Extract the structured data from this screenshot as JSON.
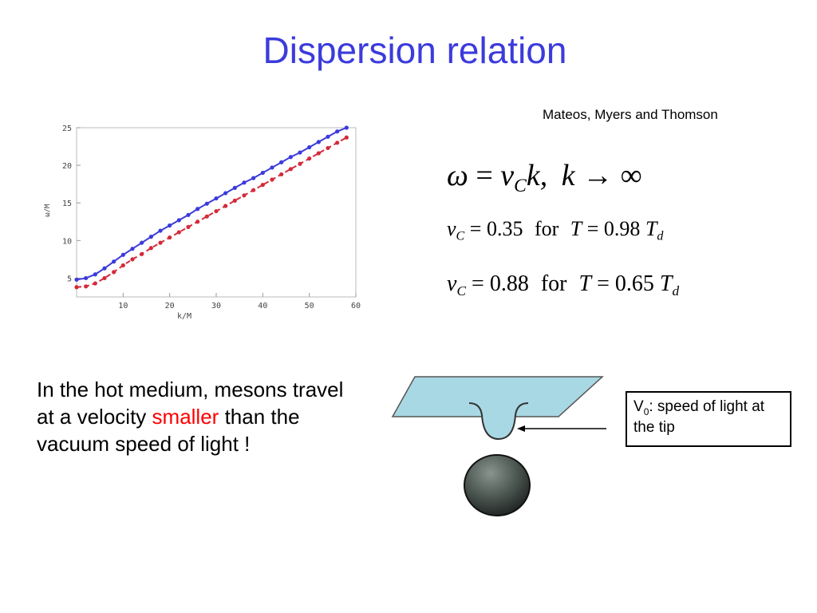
{
  "title": "Dispersion relation",
  "citation": "Mateos, Myers and Thomson",
  "equations": {
    "eq1": {
      "lhs": "ω",
      "rhs_v": "v",
      "rhs_sub": "C",
      "rhs_k": "k,",
      "limit_var": "k",
      "limit": "→ ∞"
    },
    "eq2": {
      "v": "v",
      "sub": "C",
      "value": "= 0.35",
      "word": "for",
      "T": "T",
      "eq_val": "= 0.98",
      "Td": "T",
      "Td_sub": "d"
    },
    "eq3": {
      "v": "v",
      "sub": "C",
      "value": "= 0.88",
      "word": "for",
      "T": "T",
      "eq_val": "= 0.65",
      "Td": "T",
      "Td_sub": "d"
    }
  },
  "body": {
    "part1": "In the hot medium, mesons travel at a velocity",
    "highlight": "smaller",
    "part2": "than the vacuum speed  of light  !"
  },
  "callout": {
    "prefix": "V",
    "sub": "0",
    "text": ": speed of light at the tip"
  },
  "colors": {
    "title": "#3b3bdc",
    "series_solid": "#3b3bdc",
    "series_dashed": "#d42a3a",
    "highlight": "#ff0000",
    "membrane": "#a8d8e4",
    "ball": "#4a544f"
  },
  "chart_data": {
    "type": "line",
    "xlabel": "k/M",
    "ylabel": "ω/M",
    "xlim": [
      0,
      60
    ],
    "ylim": [
      2.5,
      25
    ],
    "xticks": [
      10,
      20,
      30,
      40,
      50,
      60
    ],
    "yticks": [
      5,
      10,
      15,
      20,
      25
    ],
    "grid": false,
    "series": [
      {
        "style": "solid",
        "color": "#3b3bdc",
        "x": [
          0,
          2,
          4,
          6,
          8,
          10,
          12,
          14,
          16,
          18,
          20,
          22,
          24,
          26,
          28,
          30,
          32,
          34,
          36,
          38,
          40,
          42,
          44,
          46,
          48,
          50,
          52,
          54,
          56,
          58
        ],
        "y": [
          4.8,
          5.0,
          5.5,
          6.3,
          7.2,
          8.1,
          8.9,
          9.7,
          10.5,
          11.3,
          12.0,
          12.7,
          13.4,
          14.2,
          14.9,
          15.6,
          16.3,
          17.0,
          17.7,
          18.3,
          19.0,
          19.7,
          20.4,
          21.1,
          21.7,
          22.4,
          23.1,
          23.8,
          24.5,
          25.0
        ]
      },
      {
        "style": "dashed",
        "color": "#d42a3a",
        "x": [
          0,
          2,
          4,
          6,
          8,
          10,
          12,
          14,
          16,
          18,
          20,
          22,
          24,
          26,
          28,
          30,
          32,
          34,
          36,
          38,
          40,
          42,
          44,
          46,
          48,
          50,
          52,
          54,
          56,
          58
        ],
        "y": [
          3.8,
          3.9,
          4.3,
          5.0,
          5.8,
          6.7,
          7.5,
          8.2,
          9.0,
          9.7,
          10.4,
          11.1,
          11.8,
          12.5,
          13.2,
          13.9,
          14.6,
          15.3,
          16.0,
          16.7,
          17.4,
          18.1,
          18.8,
          19.5,
          20.2,
          20.9,
          21.6,
          22.3,
          23.0,
          23.7
        ]
      }
    ]
  }
}
